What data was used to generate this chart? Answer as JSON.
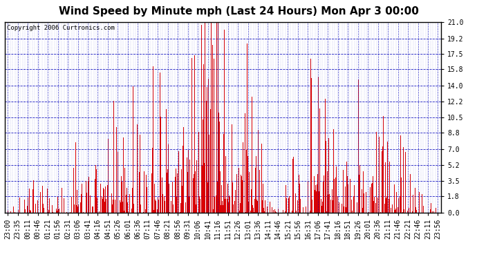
{
  "title": "Wind Speed by Minute mph (Last 24 Hours) Mon Apr 3 00:00",
  "copyright": "Copyright 2006 Curtronics.com",
  "ylabel_values": [
    0.0,
    1.8,
    3.5,
    5.2,
    7.0,
    8.8,
    10.5,
    12.2,
    14.0,
    15.8,
    17.5,
    19.2,
    21.0
  ],
  "ymax": 21.0,
  "ymin": 0.0,
  "bar_color": "#dd0000",
  "background_color": "#ffffff",
  "plot_bg_color": "#ffffff",
  "grid_color_major": "#0000bb",
  "grid_color_minor": "#4444cc",
  "title_fontsize": 11,
  "copyright_fontsize": 6.5,
  "tick_fontsize": 7,
  "x_tick_labels": [
    "23:00",
    "23:35",
    "00:11",
    "00:46",
    "01:21",
    "01:56",
    "02:31",
    "03:06",
    "03:41",
    "04:16",
    "04:51",
    "05:26",
    "06:01",
    "06:36",
    "07:11",
    "07:46",
    "08:21",
    "08:56",
    "09:31",
    "10:06",
    "10:41",
    "11:16",
    "11:51",
    "12:26",
    "13:01",
    "13:36",
    "14:11",
    "14:46",
    "15:21",
    "15:56",
    "16:31",
    "17:06",
    "17:41",
    "18:16",
    "18:51",
    "19:26",
    "20:01",
    "20:36",
    "21:11",
    "21:46",
    "22:21",
    "22:46",
    "23:11",
    "23:56"
  ],
  "num_minutes": 1440,
  "seed": 12345
}
